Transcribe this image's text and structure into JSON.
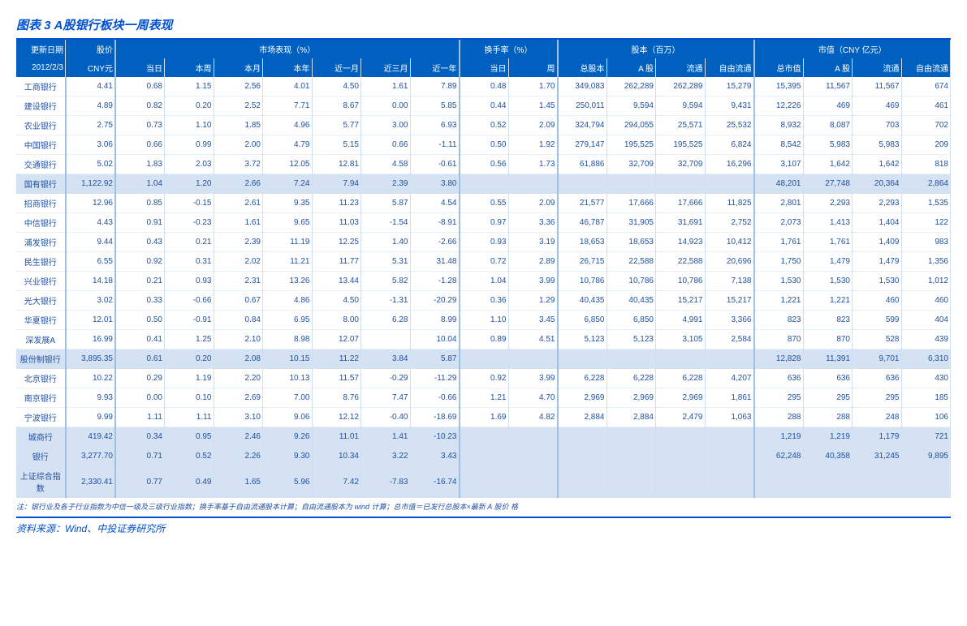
{
  "title": "图表 3  A股银行板块一周表现",
  "header": {
    "update": "更新日期",
    "price": "股价",
    "mkt": "市场表现（%）",
    "turn": "换手率（%）",
    "shares": "股本（百万）",
    "cap": "市值（CNY 亿元）",
    "date": "2012/2/3",
    "cny": "CNY元",
    "c": [
      "当日",
      "本周",
      "本月",
      "本年",
      "近一月",
      "近三月",
      "近一年",
      "当日",
      "周",
      "总股本",
      "A 股",
      "流通",
      "自由流通",
      "总市值",
      "A 股",
      "流通",
      "自由流通"
    ]
  },
  "rows": [
    {
      "n": "工商银行",
      "v": [
        "4.41",
        "0.68",
        "1.15",
        "2.56",
        "4.01",
        "4.50",
        "1.61",
        "7.89",
        "0.48",
        "1.70",
        "349,083",
        "262,289",
        "262,289",
        "15,279",
        "15,395",
        "11,567",
        "11,567",
        "674"
      ]
    },
    {
      "n": "建设银行",
      "v": [
        "4.89",
        "0.82",
        "0.20",
        "2.52",
        "7.71",
        "8.67",
        "0.00",
        "5.85",
        "0.44",
        "1.45",
        "250,011",
        "9,594",
        "9,594",
        "9,431",
        "12,226",
        "469",
        "469",
        "461"
      ]
    },
    {
      "n": "农业银行",
      "v": [
        "2.75",
        "0.73",
        "1.10",
        "1.85",
        "4.96",
        "5.77",
        "3.00",
        "6.93",
        "0.52",
        "2.09",
        "324,794",
        "294,055",
        "25,571",
        "25,532",
        "8,932",
        "8,087",
        "703",
        "702"
      ]
    },
    {
      "n": "中国银行",
      "v": [
        "3.06",
        "0.66",
        "0.99",
        "2.00",
        "4.79",
        "5.15",
        "0.66",
        "-1.11",
        "0.50",
        "1.92",
        "279,147",
        "195,525",
        "195,525",
        "6,824",
        "8,542",
        "5,983",
        "5,983",
        "209"
      ]
    },
    {
      "n": "交通银行",
      "v": [
        "5.02",
        "1.83",
        "2.03",
        "3.72",
        "12.05",
        "12.81",
        "4.58",
        "-0.61",
        "0.56",
        "1.73",
        "61,886",
        "32,709",
        "32,709",
        "16,296",
        "3,107",
        "1,642",
        "1,642",
        "818"
      ]
    },
    {
      "n": "国有银行",
      "hl": true,
      "v": [
        "1,122.92",
        "1.04",
        "1.20",
        "2.66",
        "7.24",
        "7.94",
        "2.39",
        "3.80",
        "",
        "",
        "",
        "",
        "",
        "",
        "48,201",
        "27,748",
        "20,364",
        "2,864"
      ]
    },
    {
      "n": "招商银行",
      "v": [
        "12.96",
        "0.85",
        "-0.15",
        "2.61",
        "9.35",
        "11.23",
        "5.87",
        "4.54",
        "0.55",
        "2.09",
        "21,577",
        "17,666",
        "17,666",
        "11,825",
        "2,801",
        "2,293",
        "2,293",
        "1,535"
      ]
    },
    {
      "n": "中信银行",
      "v": [
        "4.43",
        "0.91",
        "-0.23",
        "1.61",
        "9.65",
        "11.03",
        "-1.54",
        "-8.91",
        "0.97",
        "3.36",
        "46,787",
        "31,905",
        "31,691",
        "2,752",
        "2,073",
        "1,413",
        "1,404",
        "122"
      ]
    },
    {
      "n": "浦发银行",
      "v": [
        "9.44",
        "0.43",
        "0.21",
        "2.39",
        "11.19",
        "12.25",
        "1.40",
        "-2.66",
        "0.93",
        "3.19",
        "18,653",
        "18,653",
        "14,923",
        "10,412",
        "1,761",
        "1,761",
        "1,409",
        "983"
      ]
    },
    {
      "n": "民生银行",
      "v": [
        "6.55",
        "0.92",
        "0.31",
        "2.02",
        "11.21",
        "11.77",
        "5.31",
        "31.48",
        "0.72",
        "2.89",
        "26,715",
        "22,588",
        "22,588",
        "20,696",
        "1,750",
        "1,479",
        "1,479",
        "1,356"
      ]
    },
    {
      "n": "兴业银行",
      "v": [
        "14.18",
        "0.21",
        "0.93",
        "2.31",
        "13.26",
        "13.44",
        "5.82",
        "-1.28",
        "1.04",
        "3.99",
        "10,786",
        "10,786",
        "10,786",
        "7,138",
        "1,530",
        "1,530",
        "1,530",
        "1,012"
      ]
    },
    {
      "n": "光大银行",
      "v": [
        "3.02",
        "0.33",
        "-0.66",
        "0.67",
        "4.86",
        "4.50",
        "-1.31",
        "-20.29",
        "0.36",
        "1.29",
        "40,435",
        "40,435",
        "15,217",
        "15,217",
        "1,221",
        "1,221",
        "460",
        "460"
      ]
    },
    {
      "n": "华夏银行",
      "v": [
        "12.01",
        "0.50",
        "-0.91",
        "0.84",
        "6.95",
        "8.00",
        "6.28",
        "8.99",
        "1.10",
        "3.45",
        "6,850",
        "6,850",
        "4,991",
        "3,366",
        "823",
        "823",
        "599",
        "404"
      ]
    },
    {
      "n": "深发展A",
      "v": [
        "16.99",
        "0.41",
        "1.25",
        "2.10",
        "8.98",
        "12.07",
        "",
        "10.04",
        "0.89",
        "4.51",
        "5,123",
        "5,123",
        "3,105",
        "2,584",
        "870",
        "870",
        "528",
        "439"
      ]
    },
    {
      "n": "股份制银行",
      "hl": true,
      "v": [
        "3,895.35",
        "0.61",
        "0.20",
        "2.08",
        "10.15",
        "11.22",
        "3.84",
        "5.87",
        "",
        "",
        "",
        "",
        "",
        "",
        "12,828",
        "11,391",
        "9,701",
        "6,310"
      ]
    },
    {
      "n": "北京银行",
      "v": [
        "10.22",
        "0.29",
        "1.19",
        "2.20",
        "10.13",
        "11.57",
        "-0.29",
        "-11.29",
        "0.92",
        "3.99",
        "6,228",
        "6,228",
        "6,228",
        "4,207",
        "636",
        "636",
        "636",
        "430"
      ]
    },
    {
      "n": "南京银行",
      "v": [
        "9.93",
        "0.00",
        "0.10",
        "2.69",
        "7.00",
        "8.76",
        "7.47",
        "-0.66",
        "1.21",
        "4.70",
        "2,969",
        "2,969",
        "2,969",
        "1,861",
        "295",
        "295",
        "295",
        "185"
      ]
    },
    {
      "n": "宁波银行",
      "v": [
        "9.99",
        "1.11",
        "1.11",
        "3.10",
        "9.06",
        "12.12",
        "-0.40",
        "-18.69",
        "1.69",
        "4.82",
        "2,884",
        "2,884",
        "2,479",
        "1,063",
        "288",
        "288",
        "248",
        "106"
      ]
    },
    {
      "n": "城商行",
      "hl": true,
      "v": [
        "419.42",
        "0.34",
        "0.95",
        "2.46",
        "9.26",
        "11.01",
        "1.41",
        "-10.23",
        "",
        "",
        "",
        "",
        "",
        "",
        "1,219",
        "1,219",
        "1,179",
        "721"
      ]
    },
    {
      "n": "银行",
      "hl": true,
      "v": [
        "3,277.70",
        "0.71",
        "0.52",
        "2.26",
        "9.30",
        "10.34",
        "3.22",
        "3.43",
        "",
        "",
        "",
        "",
        "",
        "",
        "62,248",
        "40,358",
        "31,245",
        "9,895"
      ]
    },
    {
      "n": "上证综合指数",
      "hl": true,
      "v": [
        "2,330.41",
        "0.77",
        "0.49",
        "1.65",
        "5.96",
        "7.42",
        "-7.83",
        "-16.74",
        "",
        "",
        "",
        "",
        "",
        "",
        "",
        "",
        "",
        ""
      ]
    }
  ],
  "note": "注：银行业及各子行业指数为中信一级及三级行业指数；换手率基于自由流通股本计算；自由流通股本为 wind 计算；总市值＝已发行总股本×最新 A 股价 格",
  "source": "资料来源：Wind、中投证券研究所"
}
